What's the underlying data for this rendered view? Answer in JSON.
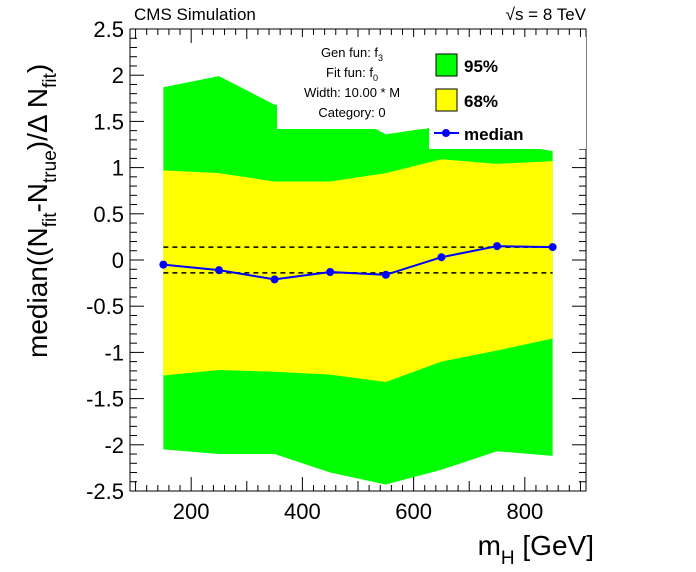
{
  "chart_data": {
    "type": "line",
    "header_left": "CMS Simulation",
    "header_right_sqrt": "√s",
    "header_right_rest": " = 8 TeV",
    "ylabel_parts": [
      "median((N",
      "fit",
      "-N",
      "true",
      ")/Δ N",
      "fit",
      ")"
    ],
    "xlabel_main": "m",
    "xlabel_sub": "H",
    "xlabel_unit": " [GeV]",
    "xlim": [
      90,
      910
    ],
    "ylim": [
      -2.5,
      2.5
    ],
    "x_ticks": [
      200,
      400,
      600,
      800
    ],
    "y_ticks": [
      2.5,
      2,
      1.5,
      1,
      0.5,
      0,
      -0.5,
      -1,
      -1.5,
      -2,
      -2.5
    ],
    "y_tick_labels": [
      "2.5",
      "2",
      "1.5",
      "1",
      "0.5",
      "0",
      "-0.5",
      "-1",
      "-1.5",
      "-2",
      "-2.5"
    ],
    "x": [
      150,
      250,
      350,
      450,
      550,
      650,
      750,
      850
    ],
    "band95": {
      "name": "95%",
      "upper": [
        1.87,
        1.99,
        1.68,
        1.68,
        1.36,
        1.45,
        1.27,
        1.18
      ],
      "lower": [
        -2.05,
        -2.1,
        -2.1,
        -2.3,
        -2.43,
        -2.27,
        -2.07,
        -2.12
      ],
      "color": "#00ff00"
    },
    "band68": {
      "name": "68%",
      "upper": [
        0.97,
        0.94,
        0.85,
        0.85,
        0.94,
        1.09,
        1.04,
        1.07
      ],
      "lower": [
        -1.25,
        -1.19,
        -1.21,
        -1.24,
        -1.32,
        -1.1,
        -0.98,
        -0.85
      ],
      "color": "#ffff00"
    },
    "median": {
      "name": "median",
      "values": [
        -0.05,
        -0.11,
        -0.21,
        -0.13,
        -0.16,
        0.03,
        0.15,
        0.14
      ],
      "color": "#0000ff"
    },
    "reference_lines": [
      0.14,
      -0.14
    ],
    "info_lines": [
      {
        "label": "Gen fun: f",
        "sub": "3"
      },
      {
        "label": "Fit fun: f",
        "sub": "0"
      },
      {
        "label": "Width: 10.00 * M",
        "sub": ""
      },
      {
        "label": "Category: 0",
        "sub": ""
      }
    ],
    "grid": false,
    "legend_placement": "top-right"
  }
}
